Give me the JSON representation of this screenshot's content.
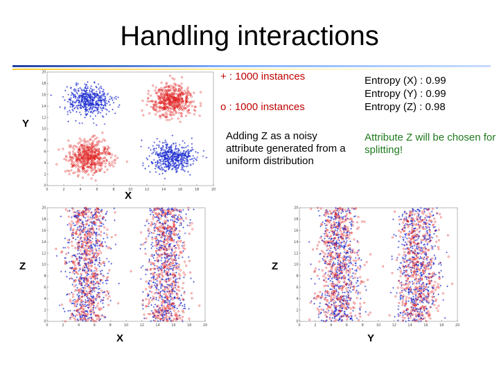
{
  "slide": {
    "title": "Handling interactions",
    "legend_plus": "+ : 1000 instances",
    "legend_o": "o : 1000 instances",
    "note_noisy": "Adding Z as a noisy attribute generated from a uniform distribution",
    "entropy_x": "Entropy (X) : 0.99",
    "entropy_y": "Entropy (Y) : 0.99",
    "entropy_z": "Entropy (Z) : 0.98",
    "conclusion": "Attribute Z will be chosen for splitting!",
    "colors": {
      "plus": "#1f2fd0",
      "o": "#e02020",
      "conclusion": "#1f7a1f"
    }
  },
  "chart_data": [
    {
      "type": "scatter",
      "xlabel": "X",
      "ylabel": "Y",
      "xlim": [
        0,
        20
      ],
      "ylim": [
        0,
        20
      ],
      "xticks": [
        "0",
        "2",
        "4",
        "6",
        "8",
        "10",
        "12",
        "14",
        "16",
        "18",
        "20"
      ],
      "yticks": [
        "0",
        "2",
        "4",
        "6",
        "8",
        "10",
        "12",
        "14",
        "16",
        "18",
        "20"
      ],
      "series": [
        {
          "marker": "+",
          "color": "#1f2fd0",
          "clusters": [
            {
              "x": 5,
              "y": 15,
              "spread": 1.3,
              "n": 500
            },
            {
              "x": 15,
              "y": 5,
              "spread": 1.3,
              "n": 500
            }
          ]
        },
        {
          "marker": "o",
          "color": "#e02020",
          "clusters": [
            {
              "x": 15,
              "y": 15,
              "spread": 1.3,
              "n": 500
            },
            {
              "x": 5,
              "y": 5,
              "spread": 1.3,
              "n": 500
            }
          ]
        }
      ]
    },
    {
      "type": "scatter",
      "xlabel": "X",
      "ylabel": "Z",
      "xlim": [
        0,
        20
      ],
      "ylim": [
        0,
        20
      ],
      "xticks": [
        "0",
        "2",
        "4",
        "6",
        "8",
        "10",
        "12",
        "14",
        "16",
        "18",
        "20"
      ],
      "yticks": [
        "0",
        "2",
        "4",
        "6",
        "8",
        "10",
        "12",
        "14",
        "16",
        "18",
        "20"
      ],
      "series": [
        {
          "marker": "+",
          "color": "#1f2fd0",
          "bands": [
            {
              "center": 5,
              "spread": 1.3,
              "n": 500
            },
            {
              "center": 15,
              "spread": 1.3,
              "n": 500
            }
          ]
        },
        {
          "marker": "o",
          "color": "#e02020",
          "bands": [
            {
              "center": 5,
              "spread": 1.3,
              "n": 500
            },
            {
              "center": 15,
              "spread": 1.3,
              "n": 500
            }
          ]
        }
      ]
    },
    {
      "type": "scatter",
      "xlabel": "Y",
      "ylabel": "Z",
      "xlim": [
        0,
        20
      ],
      "ylim": [
        0,
        20
      ],
      "xticks": [
        "0",
        "2",
        "4",
        "6",
        "8",
        "10",
        "12",
        "14",
        "16",
        "18",
        "20"
      ],
      "yticks": [
        "0",
        "2",
        "4",
        "6",
        "8",
        "10",
        "12",
        "14",
        "16",
        "18",
        "20"
      ],
      "series": [
        {
          "marker": "+",
          "color": "#1f2fd0",
          "bands": [
            {
              "center": 5,
              "spread": 1.3,
              "n": 500
            },
            {
              "center": 15,
              "spread": 1.3,
              "n": 500
            }
          ]
        },
        {
          "marker": "o",
          "color": "#e02020",
          "bands": [
            {
              "center": 5,
              "spread": 1.3,
              "n": 500
            },
            {
              "center": 15,
              "spread": 1.3,
              "n": 500
            }
          ]
        }
      ]
    }
  ]
}
